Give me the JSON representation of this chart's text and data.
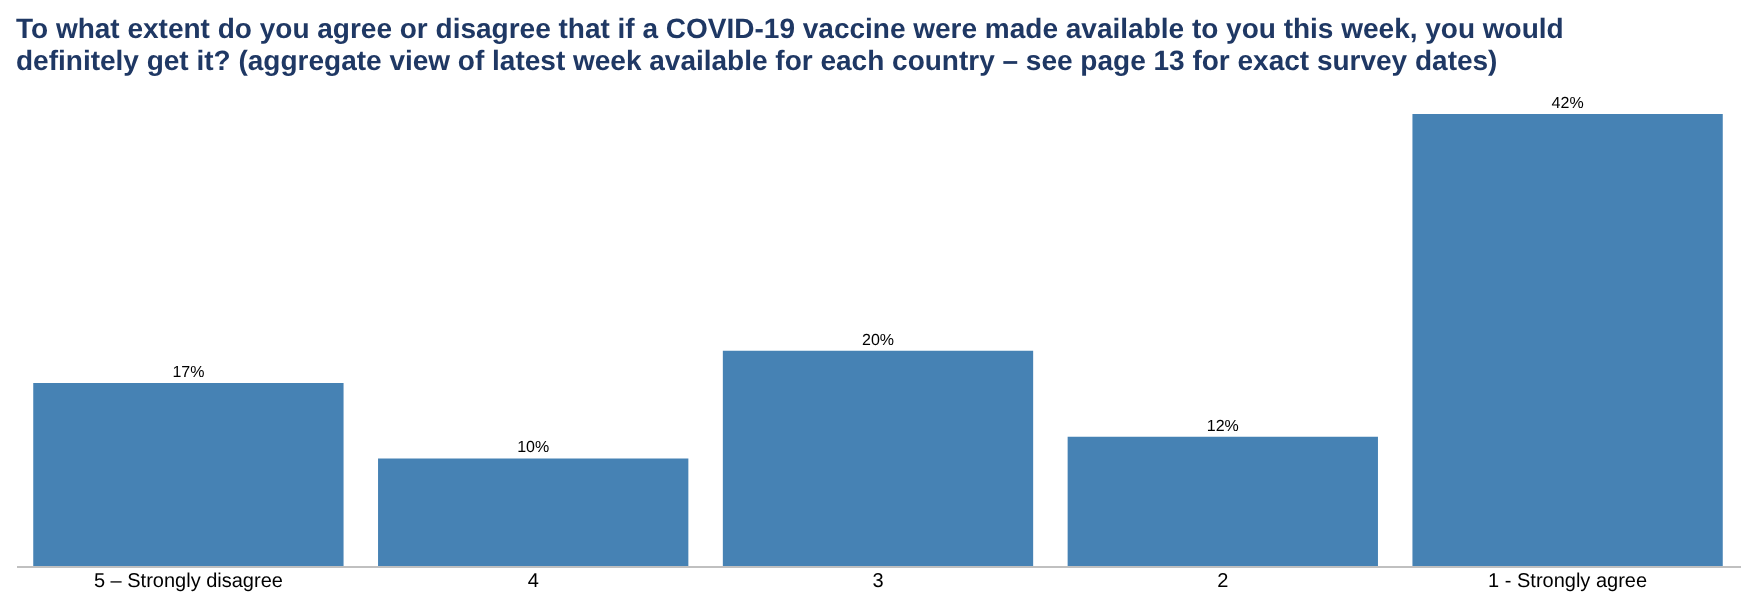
{
  "chart_data": {
    "type": "bar",
    "title": "To what extent do you agree or disagree that if a COVID-19 vaccine were made available to you this week, you would definitely get it? (aggregate view of latest week available for each country – see page 13 for exact survey dates)",
    "categories": [
      "5 – Strongly disagree",
      "4",
      "3",
      "2",
      "1 - Strongly agree"
    ],
    "values": [
      17,
      10,
      20,
      12,
      42
    ],
    "value_labels": [
      "17%",
      "10%",
      "20%",
      "12%",
      "42%"
    ],
    "color": "#4682b4",
    "grid": false
  }
}
